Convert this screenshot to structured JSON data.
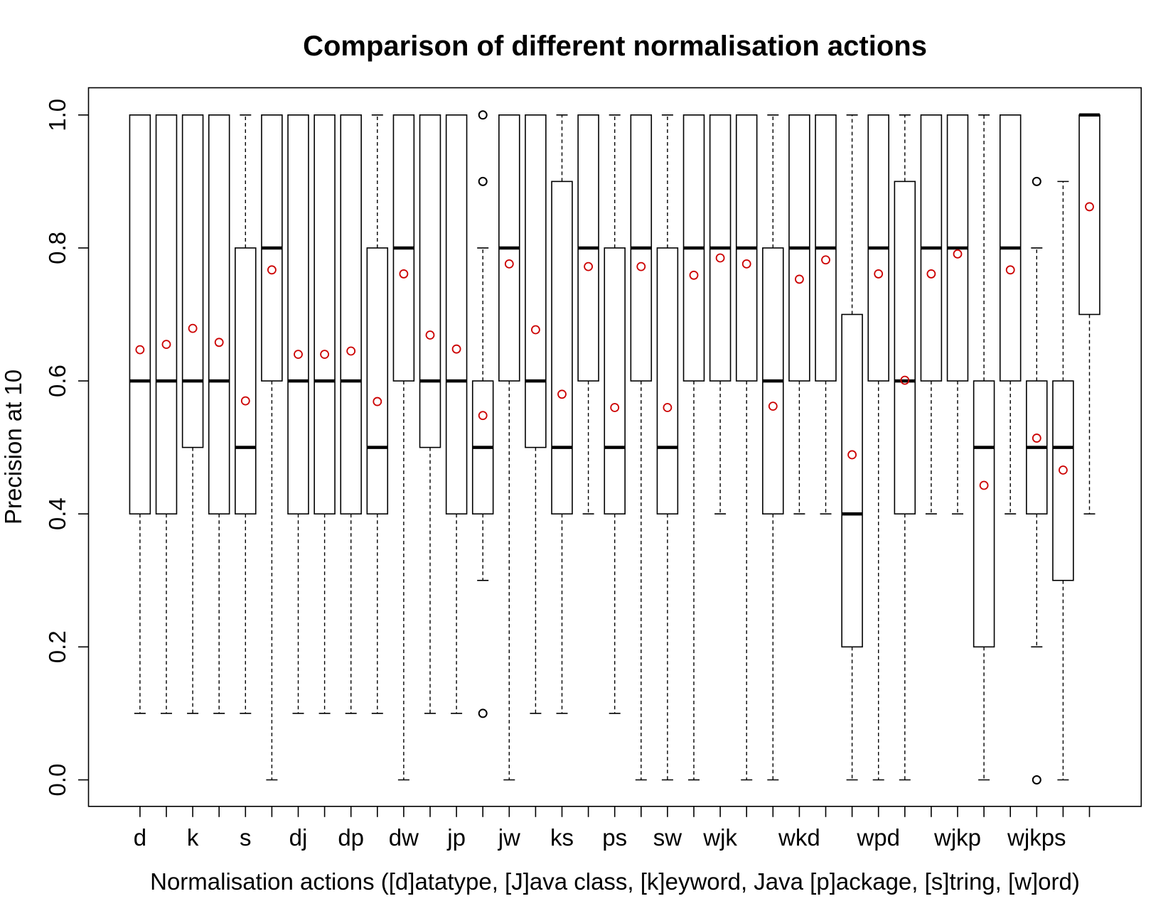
{
  "chart_data": {
    "type": "box",
    "title": "Comparison of different normalisation actions",
    "xlabel": "Normalisation actions ([d]atatype, [J]ava class, [k]eyword, Java [p]ackage, [s]tring, [w]ord)",
    "ylabel": "Precision at 10",
    "ylim": [
      0,
      1
    ],
    "yticks": [
      "0.0",
      "0.2",
      "0.4",
      "0.6",
      "0.8",
      "1.0"
    ],
    "grid": false,
    "legend": "none",
    "colors": {
      "box": "#000000",
      "mean_marker": "#cc0000",
      "outlier": "#000000"
    },
    "categories": [
      "d",
      "",
      "k",
      "",
      "s",
      "",
      "dj",
      "",
      "dp",
      "",
      "dw",
      "",
      "jp",
      "",
      "jw",
      "",
      "ks",
      "",
      "ps",
      "",
      "sw",
      "",
      "wjk",
      "",
      "",
      "wkd",
      "",
      "",
      "wpd",
      "",
      "",
      "wjkp",
      "",
      "",
      "wjkps",
      "",
      ""
    ],
    "boxes": [
      {
        "low": 0.1,
        "q1": 0.4,
        "median": 0.6,
        "q3": 1.0,
        "high": 1.0,
        "mean": 0.647,
        "outliers": []
      },
      {
        "low": 0.1,
        "q1": 0.4,
        "median": 0.6,
        "q3": 1.0,
        "high": 1.0,
        "mean": 0.655,
        "outliers": []
      },
      {
        "low": 0.1,
        "q1": 0.5,
        "median": 0.6,
        "q3": 1.0,
        "high": 1.0,
        "mean": 0.679,
        "outliers": []
      },
      {
        "low": 0.1,
        "q1": 0.4,
        "median": 0.6,
        "q3": 1.0,
        "high": 1.0,
        "mean": 0.658,
        "outliers": []
      },
      {
        "low": 0.1,
        "q1": 0.4,
        "median": 0.5,
        "q3": 0.8,
        "high": 1.0,
        "mean": 0.57,
        "outliers": []
      },
      {
        "low": 0.0,
        "q1": 0.6,
        "median": 0.8,
        "q3": 1.0,
        "high": 1.0,
        "mean": 0.767,
        "outliers": []
      },
      {
        "low": 0.1,
        "q1": 0.4,
        "median": 0.6,
        "q3": 1.0,
        "high": 1.0,
        "mean": 0.64,
        "outliers": []
      },
      {
        "low": 0.1,
        "q1": 0.4,
        "median": 0.6,
        "q3": 1.0,
        "high": 1.0,
        "mean": 0.64,
        "outliers": []
      },
      {
        "low": 0.1,
        "q1": 0.4,
        "median": 0.6,
        "q3": 1.0,
        "high": 1.0,
        "mean": 0.645,
        "outliers": []
      },
      {
        "low": 0.1,
        "q1": 0.4,
        "median": 0.5,
        "q3": 0.8,
        "high": 1.0,
        "mean": 0.569,
        "outliers": []
      },
      {
        "low": 0.0,
        "q1": 0.6,
        "median": 0.8,
        "q3": 1.0,
        "high": 1.0,
        "mean": 0.761,
        "outliers": []
      },
      {
        "low": 0.1,
        "q1": 0.5,
        "median": 0.6,
        "q3": 1.0,
        "high": 1.0,
        "mean": 0.669,
        "outliers": []
      },
      {
        "low": 0.1,
        "q1": 0.4,
        "median": 0.6,
        "q3": 1.0,
        "high": 1.0,
        "mean": 0.648,
        "outliers": []
      },
      {
        "low": 0.3,
        "q1": 0.4,
        "median": 0.5,
        "q3": 0.6,
        "high": 0.8,
        "mean": 0.548,
        "outliers": [
          0.1,
          0.9,
          1.0
        ]
      },
      {
        "low": 0.0,
        "q1": 0.6,
        "median": 0.8,
        "q3": 1.0,
        "high": 1.0,
        "mean": 0.776,
        "outliers": []
      },
      {
        "low": 0.1,
        "q1": 0.5,
        "median": 0.6,
        "q3": 1.0,
        "high": 1.0,
        "mean": 0.677,
        "outliers": []
      },
      {
        "low": 0.1,
        "q1": 0.4,
        "median": 0.5,
        "q3": 0.9,
        "high": 1.0,
        "mean": 0.58,
        "outliers": []
      },
      {
        "low": 0.4,
        "q1": 0.6,
        "median": 0.8,
        "q3": 1.0,
        "high": 1.0,
        "mean": 0.772,
        "outliers": []
      },
      {
        "low": 0.1,
        "q1": 0.4,
        "median": 0.5,
        "q3": 0.8,
        "high": 1.0,
        "mean": 0.56,
        "outliers": []
      },
      {
        "low": 0.0,
        "q1": 0.6,
        "median": 0.8,
        "q3": 1.0,
        "high": 1.0,
        "mean": 0.772,
        "outliers": []
      },
      {
        "low": 0.0,
        "q1": 0.4,
        "median": 0.5,
        "q3": 0.8,
        "high": 1.0,
        "mean": 0.56,
        "outliers": []
      },
      {
        "low": 0.0,
        "q1": 0.6,
        "median": 0.8,
        "q3": 1.0,
        "high": 1.0,
        "mean": 0.759,
        "outliers": []
      },
      {
        "low": 0.4,
        "q1": 0.6,
        "median": 0.8,
        "q3": 1.0,
        "high": 1.0,
        "mean": 0.785,
        "outliers": []
      },
      {
        "low": 0.0,
        "q1": 0.6,
        "median": 0.8,
        "q3": 1.0,
        "high": 1.0,
        "mean": 0.776,
        "outliers": []
      },
      {
        "low": 0.0,
        "q1": 0.4,
        "median": 0.6,
        "q3": 0.8,
        "high": 1.0,
        "mean": 0.562,
        "outliers": []
      },
      {
        "low": 0.4,
        "q1": 0.6,
        "median": 0.8,
        "q3": 1.0,
        "high": 1.0,
        "mean": 0.753,
        "outliers": []
      },
      {
        "low": 0.4,
        "q1": 0.6,
        "median": 0.8,
        "q3": 1.0,
        "high": 1.0,
        "mean": 0.782,
        "outliers": []
      },
      {
        "low": 0.0,
        "q1": 0.2,
        "median": 0.4,
        "q3": 0.7,
        "high": 1.0,
        "mean": 0.489,
        "outliers": []
      },
      {
        "low": 0.0,
        "q1": 0.6,
        "median": 0.8,
        "q3": 1.0,
        "high": 1.0,
        "mean": 0.761,
        "outliers": []
      },
      {
        "low": 0.0,
        "q1": 0.4,
        "median": 0.6,
        "q3": 0.9,
        "high": 1.0,
        "mean": 0.601,
        "outliers": []
      },
      {
        "low": 0.4,
        "q1": 0.6,
        "median": 0.8,
        "q3": 1.0,
        "high": 1.0,
        "mean": 0.761,
        "outliers": []
      },
      {
        "low": 0.4,
        "q1": 0.6,
        "median": 0.8,
        "q3": 1.0,
        "high": 1.0,
        "mean": 0.791,
        "outliers": []
      },
      {
        "low": 0.0,
        "q1": 0.2,
        "median": 0.5,
        "q3": 0.6,
        "high": 1.0,
        "mean": 0.443,
        "outliers": []
      },
      {
        "low": 0.4,
        "q1": 0.6,
        "median": 0.8,
        "q3": 1.0,
        "high": 1.0,
        "mean": 0.767,
        "outliers": []
      },
      {
        "low": 0.2,
        "q1": 0.4,
        "median": 0.5,
        "q3": 0.6,
        "high": 0.8,
        "mean": 0.514,
        "outliers": [
          0.0,
          0.9
        ]
      },
      {
        "low": 0.0,
        "q1": 0.3,
        "median": 0.5,
        "q3": 0.6,
        "high": 0.9,
        "mean": 0.466,
        "outliers": []
      },
      {
        "low": 0.4,
        "q1": 0.7,
        "median": 1.0,
        "q3": 1.0,
        "high": 1.0,
        "mean": 0.862,
        "outliers": []
      }
    ]
  }
}
